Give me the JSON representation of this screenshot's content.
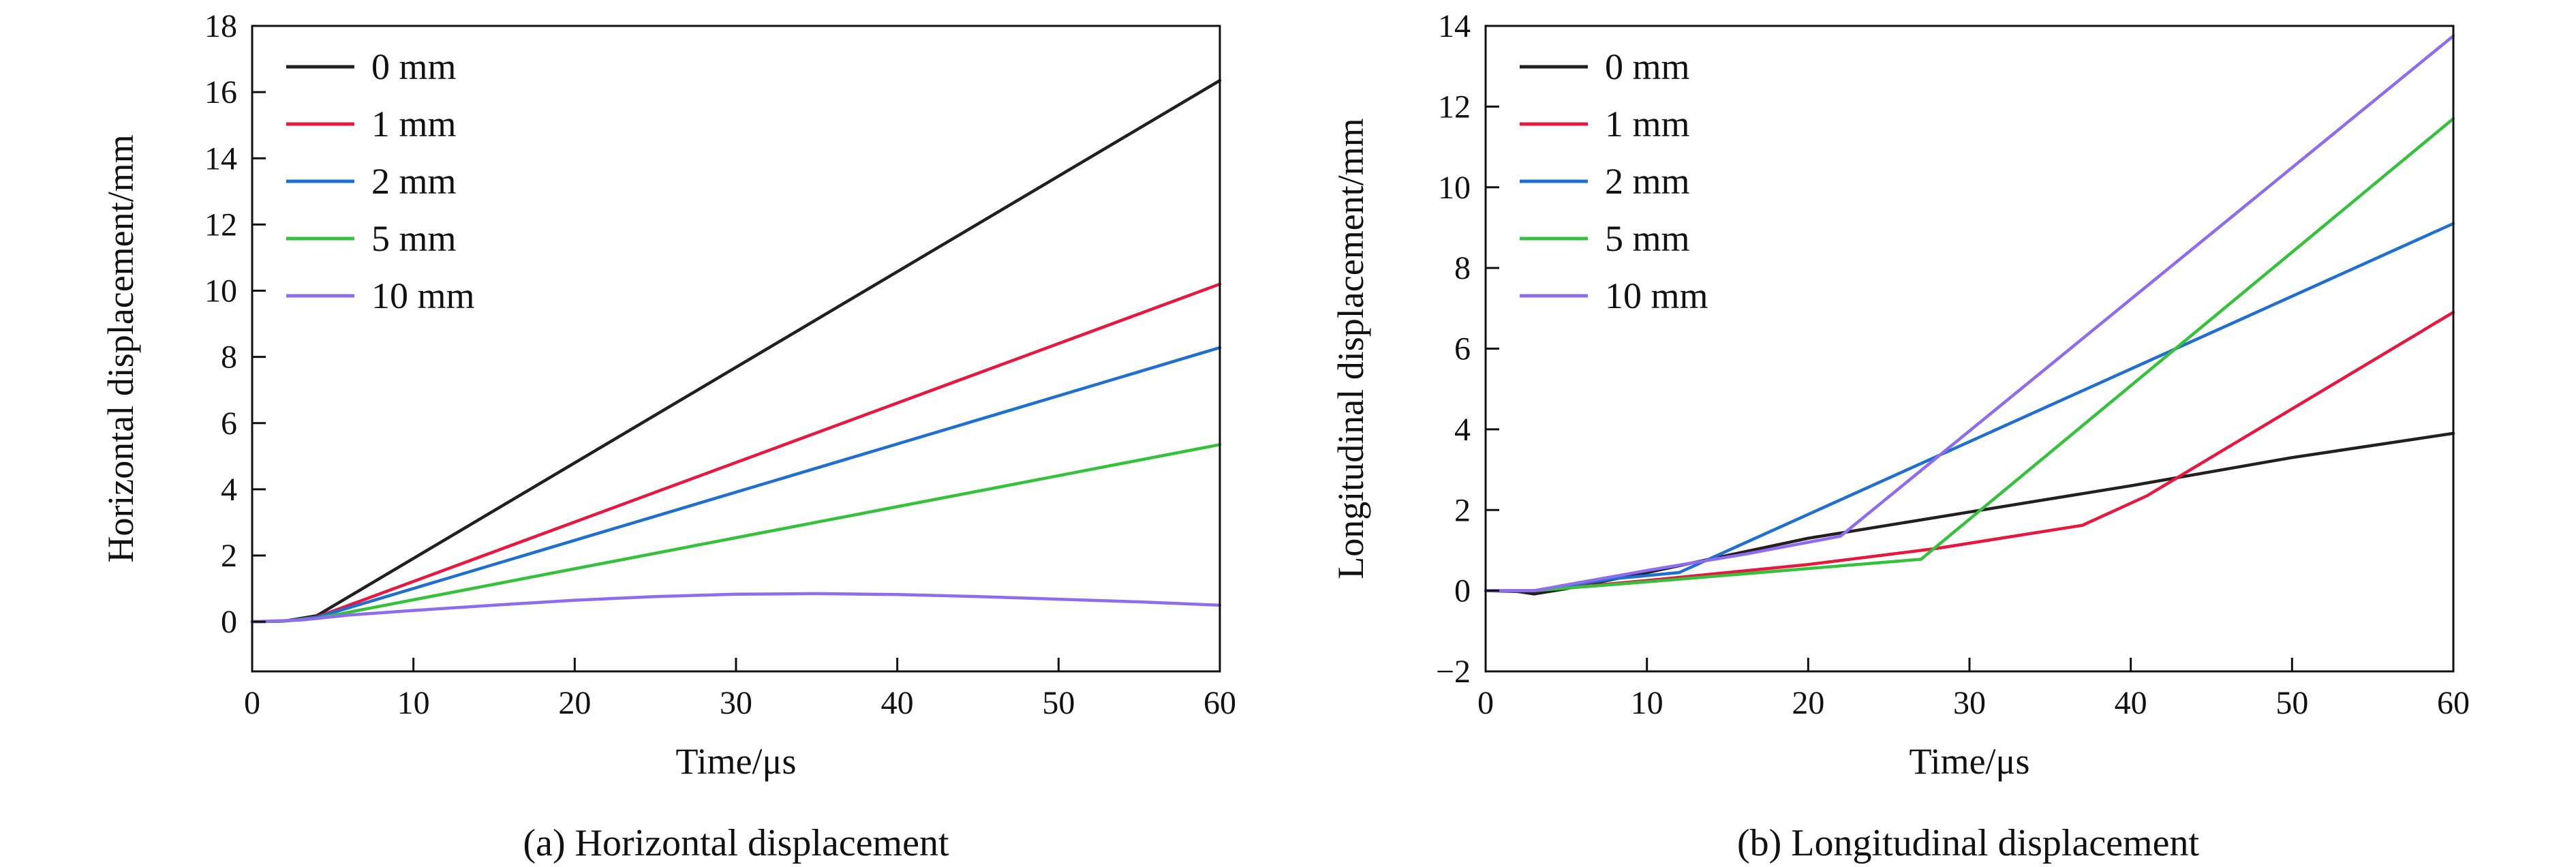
{
  "figure": {
    "captions": [
      "(a) Horizontal displacement",
      "(b) Longitudinal displacement"
    ]
  },
  "chart_data": [
    {
      "type": "line",
      "title": "(a) Horizontal displacement",
      "xlabel": "Time/μs",
      "ylabel": "Horizontal displacement/mm",
      "xlim": [
        0,
        60
      ],
      "ylim": [
        -1.5,
        18
      ],
      "xticks": [
        0,
        10,
        20,
        30,
        40,
        50,
        60
      ],
      "yticks": [
        0,
        2,
        4,
        6,
        8,
        10,
        12,
        14,
        16,
        18
      ],
      "grid": false,
      "legend_position": "top-left",
      "series": [
        {
          "name": "0 mm",
          "color": "#231f20",
          "x": [
            0,
            2,
            4,
            60
          ],
          "y": [
            0,
            0.02,
            0.18,
            16.35
          ]
        },
        {
          "name": "1 mm",
          "color": "#e8173f",
          "x": [
            0,
            2,
            4,
            60
          ],
          "y": [
            0,
            0.02,
            0.14,
            10.2
          ]
        },
        {
          "name": "2 mm",
          "color": "#1f6fd1",
          "x": [
            0,
            2,
            4,
            60
          ],
          "y": [
            0,
            0.02,
            0.13,
            8.28
          ]
        },
        {
          "name": "5 mm",
          "color": "#33c23a",
          "x": [
            0,
            2,
            4,
            60
          ],
          "y": [
            0,
            0.02,
            0.1,
            5.35
          ]
        },
        {
          "name": "10 mm",
          "color": "#8f6bf0",
          "x": [
            0,
            3,
            6,
            10,
            15,
            20,
            25,
            30,
            35,
            40,
            45,
            50,
            55,
            60
          ],
          "y": [
            0,
            0.05,
            0.2,
            0.34,
            0.5,
            0.65,
            0.76,
            0.83,
            0.85,
            0.82,
            0.76,
            0.68,
            0.6,
            0.5
          ]
        }
      ]
    },
    {
      "type": "line",
      "title": "(b) Longitudinal displacement",
      "xlabel": "Time/μs",
      "ylabel": "Longitudinal displacement/mm",
      "xlim": [
        0,
        60
      ],
      "ylim": [
        -2,
        14
      ],
      "xticks": [
        0,
        10,
        20,
        30,
        40,
        50,
        60
      ],
      "yticks": [
        -2,
        0,
        2,
        4,
        6,
        8,
        10,
        12,
        14
      ],
      "grid": false,
      "legend_position": "top-left",
      "series": [
        {
          "name": "0 mm",
          "color": "#231f20",
          "x": [
            0,
            2,
            3,
            5,
            10,
            20,
            30,
            40,
            50,
            60
          ],
          "y": [
            0,
            -0.02,
            -0.08,
            0.05,
            0.45,
            1.3,
            1.95,
            2.6,
            3.3,
            3.9
          ]
        },
        {
          "name": "1 mm",
          "color": "#e8173f",
          "x": [
            0,
            3,
            10,
            20,
            28,
            37,
            41,
            60
          ],
          "y": [
            0,
            0,
            0.25,
            0.65,
            1.05,
            1.62,
            2.35,
            6.9
          ]
        },
        {
          "name": "2 mm",
          "color": "#1f6fd1",
          "x": [
            0,
            3,
            8,
            12,
            60
          ],
          "y": [
            0,
            0,
            0.3,
            0.45,
            9.1
          ]
        },
        {
          "name": "5 mm",
          "color": "#33c23a",
          "x": [
            0,
            3,
            10,
            20,
            27,
            60
          ],
          "y": [
            0,
            0,
            0.22,
            0.55,
            0.78,
            11.7
          ]
        },
        {
          "name": "10 mm",
          "color": "#8f6bf0",
          "x": [
            0,
            3,
            10,
            16,
            22,
            60
          ],
          "y": [
            0,
            0,
            0.5,
            0.9,
            1.35,
            13.75
          ]
        }
      ]
    }
  ]
}
